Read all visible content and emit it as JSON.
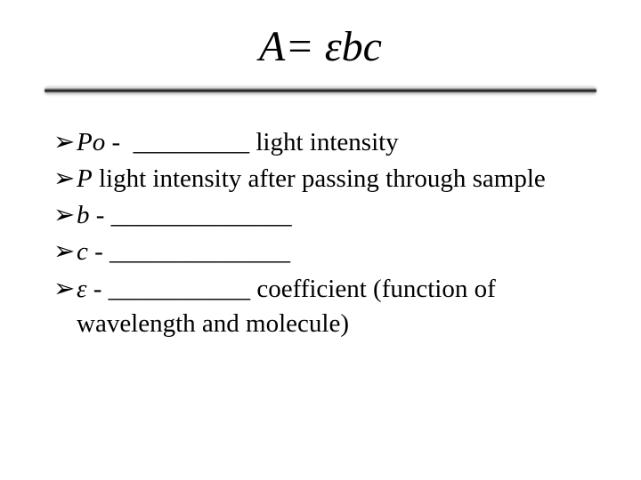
{
  "title_html": "A= εbc",
  "bullets": [
    {
      "html": "<span class='italic'>Po</span> -&nbsp;&nbsp;_________ light intensity"
    },
    {
      "html": "<span class='italic'>P</span> light intensity after passing through sample"
    },
    {
      "html": "<span class='italic'>b</span> - ______________"
    },
    {
      "html": "<span class='italic'>c</span> - ______________"
    },
    {
      "html": "<span class='italic'>ε</span> - ___________ coefficient (function of wavelength and molecule)"
    }
  ],
  "bullet_marker": "➢",
  "colors": {
    "background": "#ffffff",
    "text": "#000000",
    "divider": "#000000"
  },
  "fontsize": {
    "title": 48,
    "body": 29
  }
}
